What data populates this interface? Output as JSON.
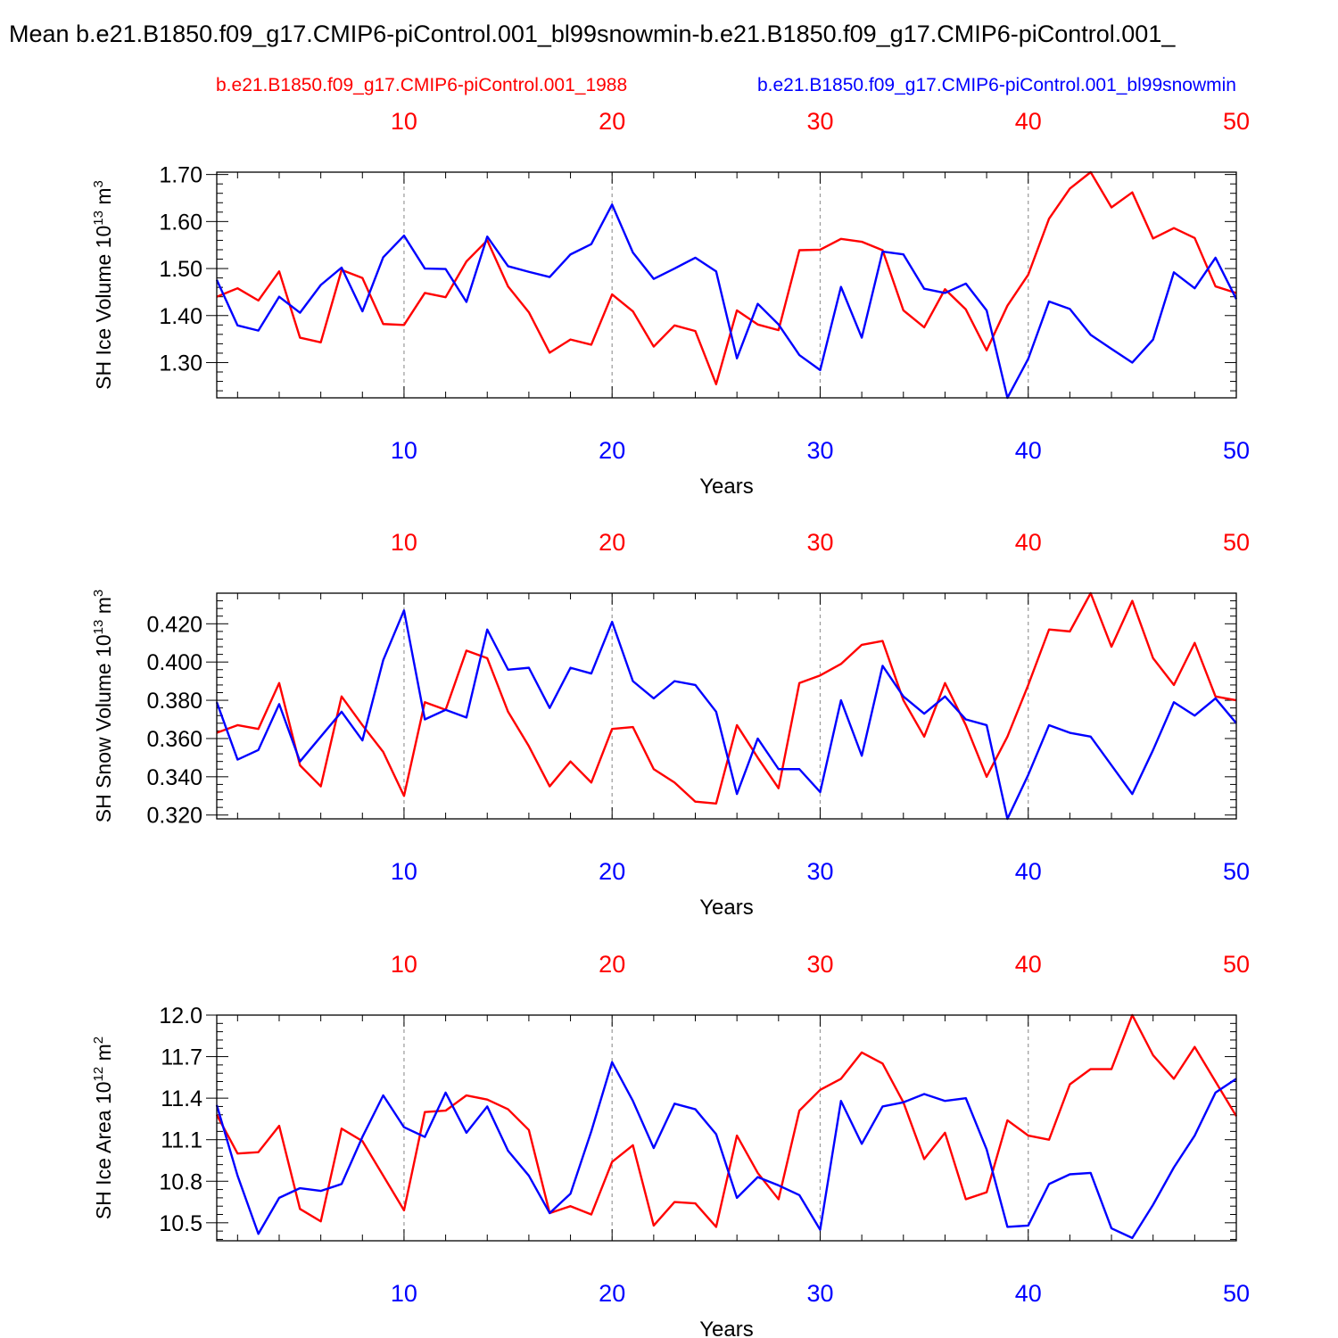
{
  "title": "Mean b.e21.B1850.f09_g17.CMIP6-piControl.001_bl99snowmin-b.e21.B1850.f09_g17.CMIP6-piControl.001_",
  "colors": {
    "case1": "#ff0000",
    "case2": "#0000ff",
    "axis": "#000000",
    "grid": "#999999"
  },
  "legend": {
    "case1": "b.e21.B1850.f09_g17.CMIP6-piControl.001_1988",
    "case2": "b.e21.B1850.f09_g17.CMIP6-piControl.001_bl99snowmin"
  },
  "chart_data": [
    {
      "type": "line",
      "ylabel": "SH Ice Volume 10",
      "ylabel_sup": "13",
      "ylabel_unit": "m",
      "ylabel_unit_sup": "3",
      "xlabel": "Years",
      "xlim": [
        1,
        50
      ],
      "ylim": [
        1.225,
        1.705
      ],
      "yticks": [
        "1.30",
        "1.40",
        "1.50",
        "1.60",
        "1.70"
      ],
      "ytick_values": [
        1.3,
        1.4,
        1.5,
        1.6,
        1.7
      ],
      "xticks": [
        "10",
        "20",
        "30",
        "40",
        "50"
      ],
      "series": [
        {
          "values": [
            1.44,
            1.458,
            1.432,
            1.494,
            1.353,
            1.343,
            1.497,
            1.48,
            1.382,
            1.38,
            1.448,
            1.439,
            1.515,
            1.56,
            1.462,
            1.407,
            1.321,
            1.349,
            1.338,
            1.445,
            1.409,
            1.334,
            1.379,
            1.367,
            1.254,
            1.411,
            1.381,
            1.369,
            1.539,
            1.54,
            1.563,
            1.557,
            1.539,
            1.411,
            1.375,
            1.456,
            1.413,
            1.326,
            1.421,
            1.487,
            1.606,
            1.67,
            1.705,
            1.63,
            1.662,
            1.564,
            1.586,
            1.565,
            1.462,
            1.448
          ]
        },
        {
          "values": [
            1.476,
            1.379,
            1.368,
            1.44,
            1.406,
            1.465,
            1.502,
            1.409,
            1.524,
            1.57,
            1.5,
            1.499,
            1.429,
            1.568,
            1.505,
            1.493,
            1.482,
            1.53,
            1.552,
            1.636,
            1.534,
            1.478,
            1.5,
            1.523,
            1.494,
            1.309,
            1.425,
            1.381,
            1.316,
            1.284,
            1.461,
            1.353,
            1.536,
            1.53,
            1.457,
            1.448,
            1.468,
            1.411,
            1.225,
            1.308,
            1.43,
            1.414,
            1.359,
            1.329,
            1.3,
            1.349,
            1.492,
            1.458,
            1.523,
            1.435
          ]
        }
      ]
    },
    {
      "type": "line",
      "ylabel": "SH Snow Volume 10",
      "ylabel_sup": "13",
      "ylabel_unit": "m",
      "ylabel_unit_sup": "3",
      "xlabel": "Years",
      "xlim": [
        1,
        50
      ],
      "ylim": [
        0.318,
        0.436
      ],
      "yticks": [
        "0.320",
        "0.340",
        "0.360",
        "0.380",
        "0.400",
        "0.420"
      ],
      "ytick_values": [
        0.32,
        0.34,
        0.36,
        0.38,
        0.4,
        0.42
      ],
      "xticks": [
        "10",
        "20",
        "30",
        "40",
        "50"
      ],
      "series": [
        {
          "values": [
            0.363,
            0.367,
            0.365,
            0.389,
            0.346,
            0.335,
            0.382,
            0.367,
            0.353,
            0.33,
            0.379,
            0.375,
            0.406,
            0.402,
            0.374,
            0.356,
            0.335,
            0.348,
            0.337,
            0.365,
            0.366,
            0.344,
            0.337,
            0.327,
            0.326,
            0.367,
            0.35,
            0.334,
            0.389,
            0.393,
            0.399,
            0.409,
            0.411,
            0.38,
            0.361,
            0.389,
            0.367,
            0.34,
            0.361,
            0.388,
            0.417,
            0.416,
            0.436,
            0.408,
            0.432,
            0.402,
            0.388,
            0.41,
            0.382,
            0.38
          ]
        },
        {
          "values": [
            0.379,
            0.349,
            0.354,
            0.378,
            0.348,
            0.361,
            0.374,
            0.359,
            0.401,
            0.427,
            0.37,
            0.375,
            0.371,
            0.417,
            0.396,
            0.397,
            0.376,
            0.397,
            0.394,
            0.421,
            0.39,
            0.381,
            0.39,
            0.388,
            0.374,
            0.331,
            0.36,
            0.344,
            0.344,
            0.332,
            0.38,
            0.351,
            0.398,
            0.382,
            0.373,
            0.382,
            0.37,
            0.367,
            0.318,
            0.341,
            0.367,
            0.363,
            0.361,
            0.346,
            0.331,
            0.354,
            0.379,
            0.372,
            0.381,
            0.368
          ]
        }
      ]
    },
    {
      "type": "line",
      "ylabel": "SH Ice Area 10",
      "ylabel_sup": "12",
      "ylabel_unit": "m",
      "ylabel_unit_sup": "2",
      "xlabel": "Years",
      "xlim": [
        1,
        50
      ],
      "ylim": [
        10.37,
        12.0
      ],
      "yticks": [
        "10.5",
        "10.8",
        "11.1",
        "11.4",
        "11.7",
        "12.0"
      ],
      "ytick_values": [
        10.5,
        10.8,
        11.1,
        11.4,
        11.7,
        12.0
      ],
      "xticks": [
        "10",
        "20",
        "30",
        "40",
        "50"
      ],
      "series": [
        {
          "values": [
            11.28,
            11.0,
            11.01,
            11.2,
            10.6,
            10.51,
            11.18,
            11.09,
            10.84,
            10.59,
            11.3,
            11.31,
            11.42,
            11.39,
            11.32,
            11.17,
            10.57,
            10.62,
            10.56,
            10.94,
            11.06,
            10.48,
            10.65,
            10.64,
            10.47,
            11.13,
            10.86,
            10.67,
            11.31,
            11.46,
            11.54,
            11.73,
            11.65,
            11.37,
            10.96,
            11.15,
            10.67,
            10.72,
            11.24,
            11.13,
            11.1,
            11.5,
            11.61,
            11.61,
            12.0,
            11.71,
            11.54,
            11.77,
            11.52,
            11.27
          ]
        },
        {
          "values": [
            11.35,
            10.84,
            10.42,
            10.68,
            10.75,
            10.73,
            10.78,
            11.12,
            11.42,
            11.19,
            11.12,
            11.44,
            11.15,
            11.34,
            11.02,
            10.84,
            10.57,
            10.71,
            11.16,
            11.66,
            11.38,
            11.04,
            11.36,
            11.32,
            11.14,
            10.68,
            10.83,
            10.77,
            10.7,
            10.45,
            11.38,
            11.07,
            11.34,
            11.37,
            11.43,
            11.38,
            11.4,
            11.03,
            10.47,
            10.48,
            10.78,
            10.85,
            10.86,
            10.46,
            10.39,
            10.63,
            10.9,
            11.13,
            11.44,
            11.54
          ]
        }
      ]
    }
  ]
}
